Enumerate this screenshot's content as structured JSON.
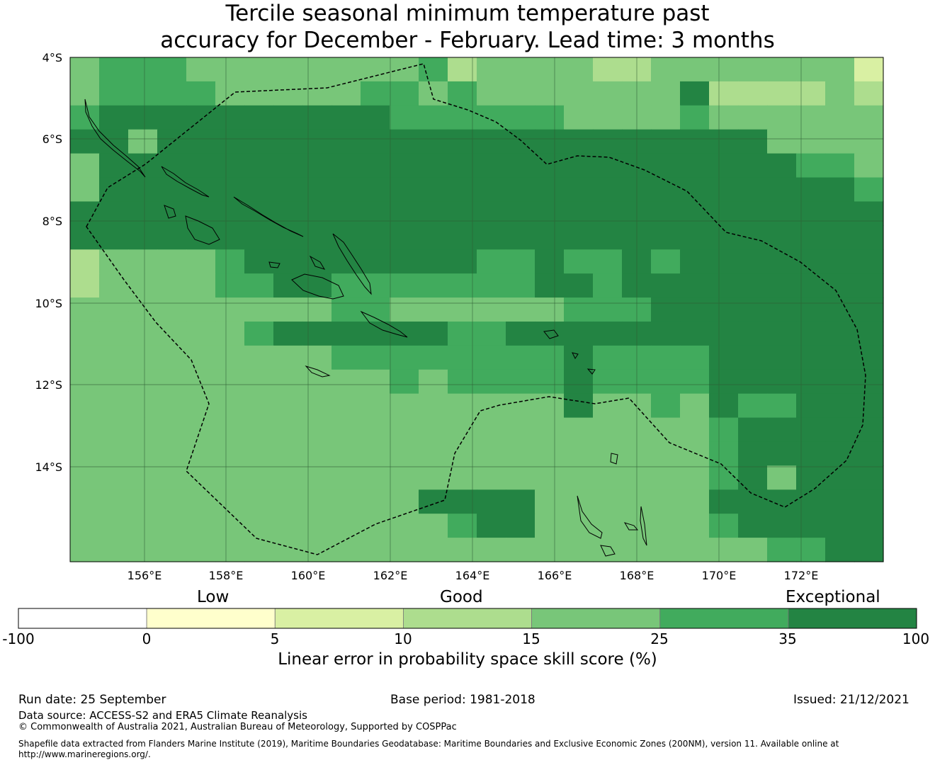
{
  "title": {
    "line1": "Tercile seasonal minimum temperature past",
    "line2": "accuracy for December - February. Lead time: 3 months"
  },
  "map": {
    "lat_labels": [
      "4°S",
      "6°S",
      "8°S",
      "10°S",
      "12°S",
      "14°S"
    ],
    "lon_labels": [
      "156°E",
      "158°E",
      "160°E",
      "162°E",
      "164°E",
      "166°E",
      "168°E",
      "170°E",
      "172°E"
    ],
    "region": "Solomon Islands EEZ",
    "grid": true
  },
  "legend": {
    "category_labels": [
      "Low",
      "Good",
      "Exceptional"
    ],
    "ticks": [
      "-100",
      "0",
      "5",
      "10",
      "15",
      "25",
      "35",
      "100"
    ],
    "colors": [
      "#ffffff",
      "#ffffcc",
      "#d9f0a3",
      "#addd8e",
      "#78c679",
      "#41ab5d",
      "#238443"
    ],
    "axis_label": "Linear error in probability space skill score (%)"
  },
  "footer": {
    "run_date": "Run date: 25 September",
    "base_period": "Base period: 1981-2018",
    "issued": "Issued: 21/12/2021",
    "data_source": "Data source: ACCESS-S2 and ERA5 Climate Reanalysis",
    "copyright": "© Commonwealth of Australia 2021, Australian Bureau of Meteorology, Supported by COSPPac",
    "shapefile_line1": "Shapefile data extracted from Flanders Marine Institute (2019), Maritime Boundaries Geodatabase: Maritime Boundaries and Exclusive Economic Zones (200NM), version 11. Available online at",
    "shapefile_line2": "http://www.marineregions.org/."
  },
  "skill_grid": {
    "legend_index_note": "levels 2-6 map to legend colors; rows north to south",
    "rows": [
      "4555444444445344443344444442",
      "4555544444554544444446333343",
      "5666666666655555544445444444",
      "6646666666666666666666664444",
      "4666666666666666666666666554",
      "4666666666666666666666666665",
      "6666666666666666666666666666",
      "6666666666666666666666666666",
      "3444456666666655655656666666",
      "3444455665555555665666666666",
      "4444444445544444455566666666",
      "4444445666666556666666666666",
      "4444444445555555565555666666",
      "4444444444454555565555666666",
      "4444444444444444464454655666",
      "4444444444444444444444566666",
      "4444444444444444444444566666",
      "4444444444444444444444564666",
      "4444444444446666444444666666",
      "4444444444444566444444566666",
      "4444444444444444444444445566"
    ]
  }
}
